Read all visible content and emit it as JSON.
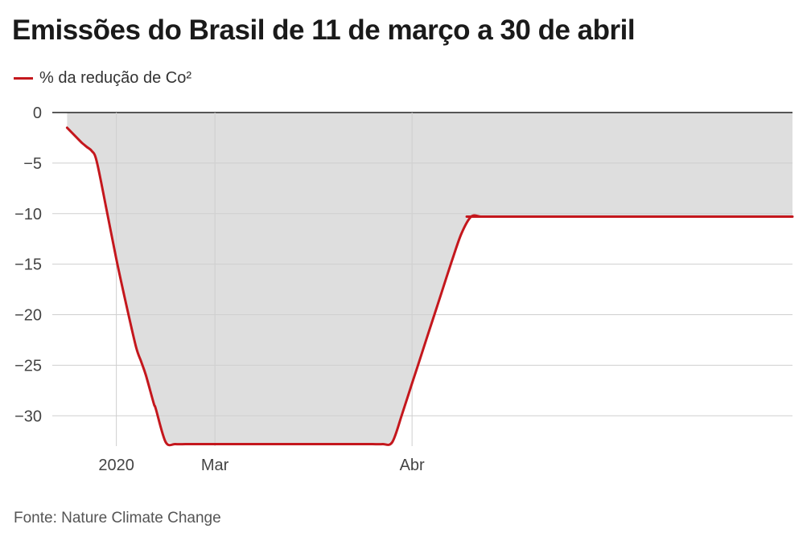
{
  "title": "Emissões do Brasil de 11 de março a 30 de abril",
  "legend": {
    "series_label": "% da redução de Co²"
  },
  "source": "Fonte: Nature Climate Change",
  "colors": {
    "line": "#c4171d",
    "area": "#dedede",
    "grid": "#cfcfcf",
    "baseline": "#222222"
  },
  "chart_data": {
    "type": "area",
    "title": "Emissões do Brasil de 11 de março a 30 de abril",
    "xlabel": "",
    "ylabel": "",
    "ylim": [
      -33,
      0
    ],
    "yticks": [
      0,
      -5,
      -10,
      -15,
      -20,
      -25,
      -30
    ],
    "ytick_labels": [
      "0",
      "−5",
      "−10",
      "−15",
      "−20",
      "−25",
      "−30"
    ],
    "xticks": [
      {
        "label": "2020",
        "x": 5
      },
      {
        "label": "Mar",
        "x": 15
      },
      {
        "label": "Abr",
        "x": 35
      }
    ],
    "xlim": [
      -1.5,
      73.6
    ],
    "grid": true,
    "legend_position": "top-left",
    "series": [
      {
        "name": "% da redução de Co²",
        "x": [
          0,
          1,
          1.5,
          2,
          2.5,
          3,
          4,
          5,
          6,
          7,
          7.5,
          8,
          8.8,
          9,
          10,
          11,
          12,
          13,
          14,
          15,
          17,
          20,
          25,
          30,
          31,
          32,
          33,
          34,
          35,
          36,
          37,
          38,
          39,
          40,
          41,
          42,
          43,
          73.6
        ],
        "values": [
          -1.5,
          -2.5,
          -3.0,
          -3.4,
          -3.8,
          -4.8,
          -9.6,
          -14.5,
          -19.0,
          -23.2,
          -24.6,
          -26.0,
          -28.8,
          -29.3,
          -32.6,
          -32.8,
          -32.8,
          -32.8,
          -32.8,
          -32.8,
          -32.8,
          -32.8,
          -32.8,
          -32.8,
          -32.8,
          -32.8,
          -32.6,
          -29.8,
          -26.8,
          -23.8,
          -20.8,
          -17.8,
          -14.8,
          -12.0,
          -10.3,
          -10.3,
          -10.3,
          -10.3
        ]
      }
    ]
  }
}
